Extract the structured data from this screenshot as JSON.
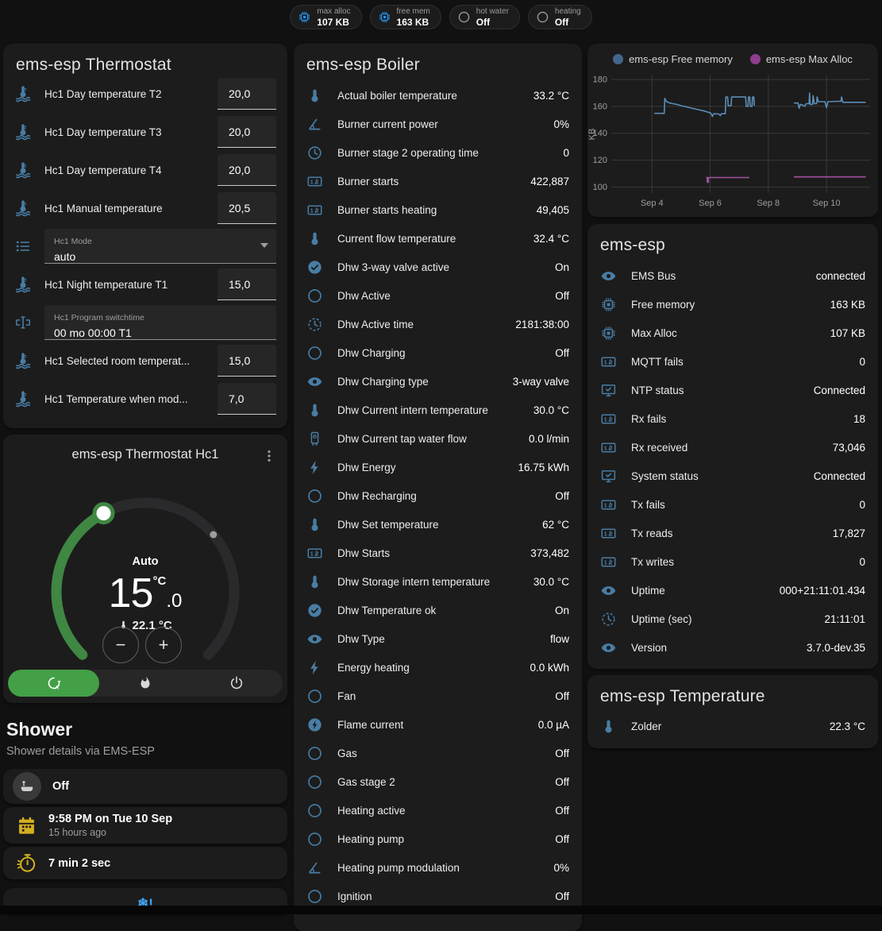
{
  "header_badges": [
    {
      "label": "max alloc",
      "value": "107 KB",
      "icon": "chip",
      "icon_color": "#2196f3"
    },
    {
      "label": "free mem",
      "value": "163 KB",
      "icon": "chip",
      "icon_color": "#2196f3"
    },
    {
      "label": "hot water",
      "value": "Off",
      "icon": "circle",
      "icon_color": "#9e9e9e"
    },
    {
      "label": "heating",
      "value": "Off",
      "icon": "circle",
      "icon_color": "#9e9e9e"
    }
  ],
  "thermostat_card": {
    "title": "ems-esp Thermostat",
    "rows": [
      {
        "type": "number",
        "icon": "thermometer-water",
        "label": "Hc1 Day temperature T2",
        "value": "20,0"
      },
      {
        "type": "number",
        "icon": "thermometer-water",
        "label": "Hc1 Day temperature T3",
        "value": "20,0"
      },
      {
        "type": "number",
        "icon": "thermometer-water",
        "label": "Hc1 Day temperature T4",
        "value": "20,0"
      },
      {
        "type": "number",
        "icon": "thermometer-water",
        "label": "Hc1 Manual temperature",
        "value": "20,5"
      },
      {
        "type": "select",
        "icon": "list",
        "label": "Hc1 Mode",
        "value": "auto"
      },
      {
        "type": "number",
        "icon": "thermometer-water",
        "label": "Hc1 Night temperature T1",
        "value": "15,0"
      },
      {
        "type": "text",
        "icon": "form-textbox",
        "label": "Hc1 Program switchtime",
        "value": "00 mo 00:00 T1"
      },
      {
        "type": "number",
        "icon": "thermometer-water",
        "label": "Hc1 Selected room temperat...",
        "value": "15,0"
      },
      {
        "type": "number",
        "icon": "thermometer-water",
        "label": "Hc1 Temperature when mod...",
        "value": "7,0"
      }
    ]
  },
  "hc1_card": {
    "title": "ems-esp Thermostat Hc1",
    "mode_label": "Auto",
    "target_int": "15",
    "target_dec": ".0",
    "target_unit": "°C",
    "current_temp": "22.1 °C",
    "modes": [
      {
        "icon": "auto-mode",
        "selected": true
      },
      {
        "icon": "fire",
        "selected": false
      },
      {
        "icon": "power",
        "selected": false
      }
    ],
    "accent_green": "#43a047",
    "arc_green": "#3f8742"
  },
  "shower": {
    "title": "Shower",
    "subtitle": "Shower details via EMS-ESP",
    "cards": [
      {
        "icon": "bathtub",
        "icon_color": "#cfcfcf",
        "circle_bg": true,
        "primary": "Off"
      },
      {
        "icon": "calendar",
        "icon_color": "#d4af1e",
        "primary": "9:58 PM on Tue 10 Sep",
        "secondary": "15 hours ago"
      },
      {
        "icon": "timer",
        "icon_color": "#d4af1e",
        "primary": "7 min 2 sec"
      },
      {
        "icon": "snowflake-alert",
        "icon_color": "#42a5f5",
        "glyph": "❄!",
        "centered": true
      }
    ]
  },
  "boiler_card": {
    "title": "ems-esp Boiler",
    "rows": [
      {
        "icon": "thermometer",
        "label": "Actual boiler temperature",
        "value": "33.2 °C"
      },
      {
        "icon": "angle",
        "label": "Burner current power",
        "value": "0%"
      },
      {
        "icon": "clock",
        "label": "Burner stage 2 operating time",
        "value": "0"
      },
      {
        "icon": "counter",
        "label": "Burner starts",
        "value": "422,887"
      },
      {
        "icon": "counter",
        "label": "Burner starts heating",
        "value": "49,405"
      },
      {
        "icon": "thermometer",
        "label": "Current flow temperature",
        "value": "32.4 °C"
      },
      {
        "icon": "check-circle",
        "label": "Dhw 3-way valve active",
        "value": "On"
      },
      {
        "icon": "circle",
        "label": "Dhw Active",
        "value": "Off"
      },
      {
        "icon": "clock-dashed",
        "label": "Dhw Active time",
        "value": "2181:38:00"
      },
      {
        "icon": "circle",
        "label": "Dhw Charging",
        "value": "Off"
      },
      {
        "icon": "eye",
        "label": "Dhw Charging type",
        "value": "3-way valve"
      },
      {
        "icon": "thermometer",
        "label": "Dhw Current intern temperature",
        "value": "30.0 °C"
      },
      {
        "icon": "boiler",
        "label": "Dhw Current tap water flow",
        "value": "0.0 l/min"
      },
      {
        "icon": "flash",
        "label": "Dhw Energy",
        "value": "16.75 kWh"
      },
      {
        "icon": "circle",
        "label": "Dhw Recharging",
        "value": "Off"
      },
      {
        "icon": "thermometer",
        "label": "Dhw Set temperature",
        "value": "62 °C"
      },
      {
        "icon": "counter",
        "label": "Dhw Starts",
        "value": "373,482"
      },
      {
        "icon": "thermometer",
        "label": "Dhw Storage intern temperature",
        "value": "30.0 °C"
      },
      {
        "icon": "check-circle",
        "label": "Dhw Temperature ok",
        "value": "On"
      },
      {
        "icon": "eye",
        "label": "Dhw Type",
        "value": "flow"
      },
      {
        "icon": "flash",
        "label": "Energy heating",
        "value": "0.0 kWh"
      },
      {
        "icon": "circle",
        "label": "Fan",
        "value": "Off"
      },
      {
        "icon": "flash-circle",
        "label": "Flame current",
        "value": "0.0 µA"
      },
      {
        "icon": "circle",
        "label": "Gas",
        "value": "Off"
      },
      {
        "icon": "circle",
        "label": "Gas stage 2",
        "value": "Off"
      },
      {
        "icon": "circle",
        "label": "Heating active",
        "value": "Off"
      },
      {
        "icon": "circle",
        "label": "Heating pump",
        "value": "Off"
      },
      {
        "icon": "angle",
        "label": "Heating pump modulation",
        "value": "0%"
      },
      {
        "icon": "circle",
        "label": "Ignition",
        "value": "Off"
      }
    ]
  },
  "emsesp_card": {
    "title": "ems-esp",
    "rows": [
      {
        "icon": "eye",
        "label": "EMS Bus",
        "value": "connected"
      },
      {
        "icon": "chip",
        "label": "Free memory",
        "value": "163 KB"
      },
      {
        "icon": "chip",
        "label": "Max Alloc",
        "value": "107 KB"
      },
      {
        "icon": "counter",
        "label": "MQTT fails",
        "value": "0"
      },
      {
        "icon": "monitor-check",
        "label": "NTP status",
        "value": "Connected"
      },
      {
        "icon": "counter",
        "label": "Rx fails",
        "value": "18"
      },
      {
        "icon": "counter",
        "label": "Rx received",
        "value": "73,046"
      },
      {
        "icon": "monitor-check",
        "label": "System status",
        "value": "Connected"
      },
      {
        "icon": "counter",
        "label": "Tx fails",
        "value": "0"
      },
      {
        "icon": "counter",
        "label": "Tx reads",
        "value": "17,827"
      },
      {
        "icon": "counter",
        "label": "Tx writes",
        "value": "0"
      },
      {
        "icon": "eye",
        "label": "Uptime",
        "value": "000+21:11:01.434"
      },
      {
        "icon": "clock-dashed",
        "label": "Uptime (sec)",
        "value": "21:11:01"
      },
      {
        "icon": "eye",
        "label": "Version",
        "value": "3.7.0-dev.35"
      }
    ]
  },
  "temperature_card": {
    "title": "ems-esp Temperature",
    "rows": [
      {
        "icon": "thermometer",
        "label": "Zolder",
        "value": "22.3 °C"
      }
    ]
  },
  "chart_data": {
    "type": "line",
    "ylabel": "KB",
    "ylim": [
      95.5,
      183
    ],
    "yticks": [
      100,
      120,
      140,
      160,
      180
    ],
    "xlim": [
      2.6,
      11.5
    ],
    "xticks": [
      {
        "x": 4,
        "label": "Sep 4"
      },
      {
        "x": 6,
        "label": "Sep 6"
      },
      {
        "x": 8,
        "label": "Sep 8"
      },
      {
        "x": 10,
        "label": "Sep 10"
      }
    ],
    "grid": true,
    "legend_position": "top",
    "series": [
      {
        "name": "ems-esp Free memory",
        "color": "#5b8cb4",
        "dot_color": "#44668a",
        "segments": [
          [
            [
              4.08,
              154.8
            ],
            [
              4.42,
              154.8
            ],
            [
              4.44,
              166
            ],
            [
              4.5,
              163.5
            ],
            [
              4.62,
              162.5
            ],
            [
              4.72,
              162
            ],
            [
              4.85,
              161.5
            ],
            [
              5.0,
              160.5
            ],
            [
              5.15,
              159.8
            ],
            [
              5.3,
              159
            ],
            [
              5.45,
              158.2
            ],
            [
              5.6,
              157.5
            ],
            [
              5.75,
              156.8
            ],
            [
              5.85,
              156.2
            ],
            [
              5.95,
              155.5
            ],
            [
              6.02,
              155
            ],
            [
              6.08,
              152.5
            ],
            [
              6.12,
              154.5
            ],
            [
              6.3,
              154.3
            ],
            [
              6.35,
              153
            ],
            [
              6.38,
              154.5
            ],
            [
              6.52,
              154.5
            ],
            [
              6.54,
              167
            ],
            [
              6.6,
              167
            ],
            [
              6.62,
              160.5
            ],
            [
              6.72,
              160.5
            ],
            [
              6.74,
              167
            ],
            [
              7.22,
              167
            ],
            [
              7.24,
              160
            ],
            [
              7.3,
              160
            ],
            [
              7.32,
              167
            ],
            [
              7.36,
              167
            ],
            [
              7.38,
              160
            ],
            [
              7.44,
              160
            ],
            [
              7.46,
              167
            ],
            [
              7.5,
              167
            ],
            [
              7.52,
              160.5
            ]
          ],
          [
            [
              8.88,
              162.5
            ],
            [
              9.02,
              162.5
            ],
            [
              9.06,
              158.5
            ],
            [
              9.1,
              161.5
            ],
            [
              9.18,
              161
            ],
            [
              9.25,
              160
            ],
            [
              9.3,
              162
            ],
            [
              9.4,
              162
            ],
            [
              9.42,
              170
            ],
            [
              9.44,
              161.5
            ],
            [
              9.52,
              161.5
            ],
            [
              9.54,
              168
            ],
            [
              9.58,
              162
            ],
            [
              9.66,
              162
            ],
            [
              9.68,
              167
            ],
            [
              9.72,
              163.5
            ],
            [
              9.95,
              163.5
            ],
            [
              10.0,
              159
            ],
            [
              10.05,
              163.5
            ],
            [
              10.4,
              163.8
            ],
            [
              10.5,
              163.8
            ],
            [
              10.52,
              167
            ],
            [
              10.56,
              163
            ],
            [
              11.35,
              163
            ]
          ]
        ]
      },
      {
        "name": "ems-esp Max Alloc",
        "color": "#a152a1",
        "dot_color": "#8e3e8e",
        "segments": [
          [
            [
              5.86,
              107
            ],
            [
              5.9,
              107
            ],
            [
              5.9,
              103.5
            ],
            [
              5.94,
              103.5
            ],
            [
              5.94,
              107
            ],
            [
              7.35,
              107
            ]
          ],
          [
            [
              8.88,
              107.5
            ],
            [
              11.35,
              107.5
            ]
          ]
        ]
      }
    ]
  }
}
